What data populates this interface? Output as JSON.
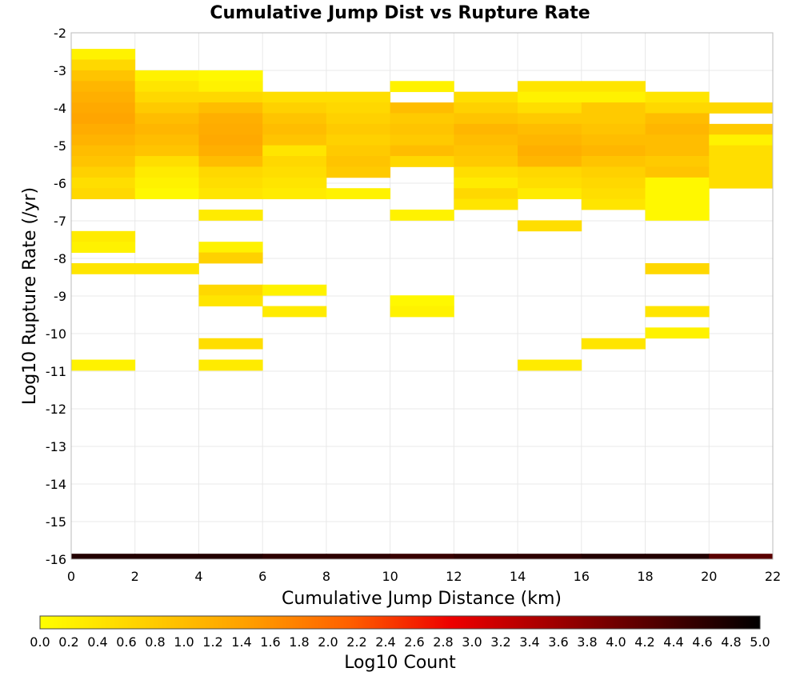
{
  "chart_data": {
    "type": "heatmap",
    "title": "Cumulative Jump Dist vs Rupture Rate",
    "xlabel": "Cumulative Jump Distance (km)",
    "ylabel": "Log10 Rupture Rate (/yr)",
    "colorbar_label": "Log10 Count",
    "xlim": [
      0,
      22
    ],
    "ylim": [
      -16,
      -2
    ],
    "x_ticks": [
      "0",
      "2",
      "4",
      "6",
      "8",
      "10",
      "12",
      "14",
      "16",
      "18",
      "20",
      "22"
    ],
    "y_ticks": [
      "-2",
      "-3",
      "-4",
      "-5",
      "-6",
      "-7",
      "-8",
      "-9",
      "-10",
      "-11",
      "-12",
      "-13",
      "-14",
      "-15",
      "-16"
    ],
    "colorbar_range": [
      0,
      5
    ],
    "colorbar_ticks": [
      "0.0",
      "0.2",
      "0.4",
      "0.6",
      "0.8",
      "1.0",
      "1.2",
      "1.4",
      "1.6",
      "1.8",
      "2.0",
      "2.2",
      "2.4",
      "2.6",
      "2.8",
      "3.0",
      "3.2",
      "3.4",
      "3.6",
      "3.8",
      "4.0",
      "4.2",
      "4.4",
      "4.6",
      "4.8",
      "5.0"
    ],
    "colormap": [
      "#ffff00",
      "#ffd000",
      "#ffa000",
      "#ff6000",
      "#ee0000",
      "#a00000",
      "#500000",
      "#000000"
    ],
    "grid": true,
    "bin_width_x": 2,
    "bin_height_y": 0.285,
    "cells": [
      {
        "x": 0,
        "y": -2.57,
        "v": 0.2
      },
      {
        "x": 0,
        "y": -2.855,
        "v": 0.6
      },
      {
        "x": 0,
        "y": -3.14,
        "v": 0.9
      },
      {
        "x": 0,
        "y": -3.425,
        "v": 1.1
      },
      {
        "x": 0,
        "y": -3.71,
        "v": 1.2
      },
      {
        "x": 0,
        "y": -3.995,
        "v": 1.3
      },
      {
        "x": 0,
        "y": -4.28,
        "v": 1.35
      },
      {
        "x": 0,
        "y": -4.565,
        "v": 1.25
      },
      {
        "x": 0,
        "y": -4.85,
        "v": 1.15
      },
      {
        "x": 0,
        "y": -5.135,
        "v": 1.0
      },
      {
        "x": 0,
        "y": -5.42,
        "v": 0.9
      },
      {
        "x": 0,
        "y": -5.705,
        "v": 0.7
      },
      {
        "x": 0,
        "y": -5.99,
        "v": 0.5
      },
      {
        "x": 0,
        "y": -6.275,
        "v": 0.6
      },
      {
        "x": 0,
        "y": -7.415,
        "v": 0.3
      },
      {
        "x": 0,
        "y": -7.7,
        "v": 0.2
      },
      {
        "x": 0,
        "y": -8.27,
        "v": 0.4
      },
      {
        "x": 0,
        "y": -10.835,
        "v": 0.2
      },
      {
        "x": 2,
        "y": -3.14,
        "v": 0.2
      },
      {
        "x": 2,
        "y": -3.425,
        "v": 0.4
      },
      {
        "x": 2,
        "y": -3.71,
        "v": 0.6
      },
      {
        "x": 2,
        "y": -3.995,
        "v": 0.8
      },
      {
        "x": 2,
        "y": -4.28,
        "v": 1.0
      },
      {
        "x": 2,
        "y": -4.565,
        "v": 1.1
      },
      {
        "x": 2,
        "y": -4.85,
        "v": 1.0
      },
      {
        "x": 2,
        "y": -5.135,
        "v": 0.9
      },
      {
        "x": 2,
        "y": -5.42,
        "v": 0.5
      },
      {
        "x": 2,
        "y": -5.705,
        "v": 0.3
      },
      {
        "x": 2,
        "y": -5.99,
        "v": 0.2
      },
      {
        "x": 2,
        "y": -6.275,
        "v": 0.1
      },
      {
        "x": 2,
        "y": -8.27,
        "v": 0.4
      },
      {
        "x": 4,
        "y": -3.14,
        "v": 0.1
      },
      {
        "x": 4,
        "y": -3.425,
        "v": 0.2
      },
      {
        "x": 4,
        "y": -3.71,
        "v": 0.6
      },
      {
        "x": 4,
        "y": -3.995,
        "v": 1.0
      },
      {
        "x": 4,
        "y": -4.28,
        "v": 1.2
      },
      {
        "x": 4,
        "y": -4.565,
        "v": 1.25
      },
      {
        "x": 4,
        "y": -4.85,
        "v": 1.3
      },
      {
        "x": 4,
        "y": -5.135,
        "v": 1.2
      },
      {
        "x": 4,
        "y": -5.42,
        "v": 1.0
      },
      {
        "x": 4,
        "y": -5.705,
        "v": 0.6
      },
      {
        "x": 4,
        "y": -5.99,
        "v": 0.5
      },
      {
        "x": 4,
        "y": -6.275,
        "v": 0.4
      },
      {
        "x": 4,
        "y": -6.845,
        "v": 0.3
      },
      {
        "x": 4,
        "y": -7.7,
        "v": 0.2
      },
      {
        "x": 4,
        "y": -7.985,
        "v": 0.7
      },
      {
        "x": 4,
        "y": -8.84,
        "v": 0.6
      },
      {
        "x": 4,
        "y": -9.125,
        "v": 0.4
      },
      {
        "x": 4,
        "y": -10.265,
        "v": 0.5
      },
      {
        "x": 4,
        "y": -10.835,
        "v": 0.3
      },
      {
        "x": 6,
        "y": -3.71,
        "v": 0.5
      },
      {
        "x": 6,
        "y": -3.995,
        "v": 0.7
      },
      {
        "x": 6,
        "y": -4.28,
        "v": 0.9
      },
      {
        "x": 6,
        "y": -4.565,
        "v": 1.0
      },
      {
        "x": 6,
        "y": -4.85,
        "v": 0.9
      },
      {
        "x": 6,
        "y": -5.135,
        "v": 0.4
      },
      {
        "x": 6,
        "y": -5.42,
        "v": 0.6
      },
      {
        "x": 6,
        "y": -5.705,
        "v": 0.5
      },
      {
        "x": 6,
        "y": -5.99,
        "v": 0.4
      },
      {
        "x": 6,
        "y": -6.275,
        "v": 0.3
      },
      {
        "x": 6,
        "y": -8.84,
        "v": 0.2
      },
      {
        "x": 6,
        "y": -9.41,
        "v": 0.3
      },
      {
        "x": 8,
        "y": -3.71,
        "v": 0.5
      },
      {
        "x": 8,
        "y": -3.995,
        "v": 0.6
      },
      {
        "x": 8,
        "y": -4.28,
        "v": 0.7
      },
      {
        "x": 8,
        "y": -4.565,
        "v": 0.8
      },
      {
        "x": 8,
        "y": -4.85,
        "v": 0.7
      },
      {
        "x": 8,
        "y": -5.135,
        "v": 0.8
      },
      {
        "x": 8,
        "y": -5.42,
        "v": 0.9
      },
      {
        "x": 8,
        "y": -5.705,
        "v": 0.8
      },
      {
        "x": 8,
        "y": -6.275,
        "v": 0.2
      },
      {
        "x": 10,
        "y": -3.425,
        "v": 0.2
      },
      {
        "x": 10,
        "y": -3.995,
        "v": 1.0
      },
      {
        "x": 10,
        "y": -4.28,
        "v": 0.8
      },
      {
        "x": 10,
        "y": -4.565,
        "v": 0.9
      },
      {
        "x": 10,
        "y": -4.85,
        "v": 0.8
      },
      {
        "x": 10,
        "y": -5.135,
        "v": 1.0
      },
      {
        "x": 10,
        "y": -5.42,
        "v": 0.6
      },
      {
        "x": 10,
        "y": -6.845,
        "v": 0.2
      },
      {
        "x": 10,
        "y": -9.125,
        "v": 0.1
      },
      {
        "x": 10,
        "y": -9.41,
        "v": 0.2
      },
      {
        "x": 12,
        "y": -3.71,
        "v": 0.5
      },
      {
        "x": 12,
        "y": -3.995,
        "v": 0.7
      },
      {
        "x": 12,
        "y": -4.28,
        "v": 0.9
      },
      {
        "x": 12,
        "y": -4.565,
        "v": 1.1
      },
      {
        "x": 12,
        "y": -4.85,
        "v": 1.0
      },
      {
        "x": 12,
        "y": -5.135,
        "v": 0.9
      },
      {
        "x": 12,
        "y": -5.42,
        "v": 0.8
      },
      {
        "x": 12,
        "y": -5.705,
        "v": 0.5
      },
      {
        "x": 12,
        "y": -5.99,
        "v": 0.3
      },
      {
        "x": 12,
        "y": -6.275,
        "v": 0.6
      },
      {
        "x": 12,
        "y": -6.56,
        "v": 0.4
      },
      {
        "x": 14,
        "y": -3.425,
        "v": 0.4
      },
      {
        "x": 14,
        "y": -3.71,
        "v": 0.2
      },
      {
        "x": 14,
        "y": -3.995,
        "v": 0.5
      },
      {
        "x": 14,
        "y": -4.28,
        "v": 0.8
      },
      {
        "x": 14,
        "y": -4.565,
        "v": 1.0
      },
      {
        "x": 14,
        "y": -4.85,
        "v": 1.1
      },
      {
        "x": 14,
        "y": -5.135,
        "v": 1.2
      },
      {
        "x": 14,
        "y": -5.42,
        "v": 1.1
      },
      {
        "x": 14,
        "y": -5.705,
        "v": 0.6
      },
      {
        "x": 14,
        "y": -5.99,
        "v": 0.5
      },
      {
        "x": 14,
        "y": -6.275,
        "v": 0.3
      },
      {
        "x": 14,
        "y": -7.13,
        "v": 0.5
      },
      {
        "x": 14,
        "y": -10.835,
        "v": 0.3
      },
      {
        "x": 16,
        "y": -3.425,
        "v": 0.4
      },
      {
        "x": 16,
        "y": -3.71,
        "v": 0.2
      },
      {
        "x": 16,
        "y": -3.995,
        "v": 0.8
      },
      {
        "x": 16,
        "y": -4.28,
        "v": 0.8
      },
      {
        "x": 16,
        "y": -4.565,
        "v": 0.9
      },
      {
        "x": 16,
        "y": -4.85,
        "v": 1.0
      },
      {
        "x": 16,
        "y": -5.135,
        "v": 1.1
      },
      {
        "x": 16,
        "y": -5.42,
        "v": 0.9
      },
      {
        "x": 16,
        "y": -5.705,
        "v": 0.7
      },
      {
        "x": 16,
        "y": -5.99,
        "v": 0.6
      },
      {
        "x": 16,
        "y": -6.275,
        "v": 0.5
      },
      {
        "x": 16,
        "y": -6.56,
        "v": 0.4
      },
      {
        "x": 16,
        "y": -10.265,
        "v": 0.4
      },
      {
        "x": 18,
        "y": -3.71,
        "v": 0.4
      },
      {
        "x": 18,
        "y": -3.995,
        "v": 0.6
      },
      {
        "x": 18,
        "y": -4.28,
        "v": 1.0
      },
      {
        "x": 18,
        "y": -4.565,
        "v": 1.1
      },
      {
        "x": 18,
        "y": -4.85,
        "v": 1.0
      },
      {
        "x": 18,
        "y": -5.135,
        "v": 1.0
      },
      {
        "x": 18,
        "y": -5.42,
        "v": 0.8
      },
      {
        "x": 18,
        "y": -5.705,
        "v": 0.9
      },
      {
        "x": 18,
        "y": -5.99,
        "v": 0.1
      },
      {
        "x": 18,
        "y": -6.275,
        "v": 0.1
      },
      {
        "x": 18,
        "y": -6.56,
        "v": 0.1
      },
      {
        "x": 18,
        "y": -6.845,
        "v": 0.1
      },
      {
        "x": 18,
        "y": -8.27,
        "v": 0.6
      },
      {
        "x": 18,
        "y": -9.41,
        "v": 0.4
      },
      {
        "x": 18,
        "y": -9.98,
        "v": 0.2
      },
      {
        "x": 20,
        "y": -3.995,
        "v": 0.6
      },
      {
        "x": 20,
        "y": -4.565,
        "v": 0.8
      },
      {
        "x": 20,
        "y": -4.85,
        "v": 0.2
      },
      {
        "x": 20,
        "y": -5.135,
        "v": 0.5
      },
      {
        "x": 20,
        "y": -5.42,
        "v": 0.5
      },
      {
        "x": 20,
        "y": -5.705,
        "v": 0.5
      },
      {
        "x": 20,
        "y": -5.99,
        "v": 0.5
      }
    ],
    "bottom_row": {
      "y": -15.93,
      "height": 0.15,
      "values": [
        4.7,
        4.7,
        4.7,
        4.6,
        4.6,
        4.5,
        4.6,
        4.6,
        4.7,
        4.7,
        4.2
      ]
    }
  }
}
